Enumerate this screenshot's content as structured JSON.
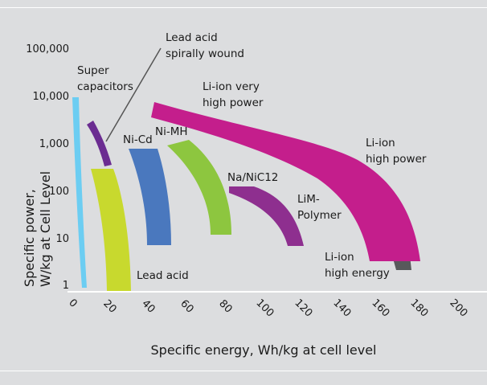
{
  "chart_data": {
    "type": "area",
    "title": "",
    "xlabel": "Specific energy, Wh/kg at cell level",
    "ylabel_line1": "Specific power,",
    "ylabel_line2": "W/kg at Cell Level",
    "x_ticks": [
      "0",
      "20",
      "40",
      "60",
      "80",
      "100",
      "120",
      "140",
      "160",
      "180",
      "200"
    ],
    "y_ticks": [
      "1",
      "10",
      "100",
      "1,000",
      "10,000",
      "100,000"
    ],
    "y_scale": "log",
    "grid": false,
    "legend": "none",
    "regions": [
      {
        "name": "Super capacitors",
        "color": "#6ccdf2"
      },
      {
        "name": "Lead acid spirally wound",
        "color": "#6b2c91"
      },
      {
        "name": "Lead acid",
        "color": "#c8d92e"
      },
      {
        "name": "Ni-Cd",
        "color": "#4a78be"
      },
      {
        "name": "Ni-MH",
        "color": "#8dc63f"
      },
      {
        "name": "Na/NiC12",
        "color": "#8e2f8f"
      },
      {
        "name": "LiM-Polymer",
        "color": "#58595b"
      },
      {
        "name": "Li-ion very high power",
        "color": "#c41e8c"
      },
      {
        "name": "Li-ion high power",
        "color": "#c41e8c"
      },
      {
        "name": "Li-ion high energy",
        "color": "#58595b"
      }
    ],
    "labels": {
      "super_1": "Super",
      "super_2": "capacitors",
      "lead_sw_1": "Lead acid",
      "lead_sw_2": "spirally wound",
      "lead": "Lead acid",
      "nicd": "Ni-Cd",
      "nimh": "Ni-MH",
      "nanicl": "Na/NiC12",
      "lim_1": "LiM-",
      "lim_2": "Polymer",
      "livhp_1": "Li-ion very",
      "livhp_2": "high power",
      "lihp_1": "Li-ion",
      "lihp_2": "high power",
      "lihe_1": "Li-ion",
      "lihe_2": "high energy"
    }
  }
}
